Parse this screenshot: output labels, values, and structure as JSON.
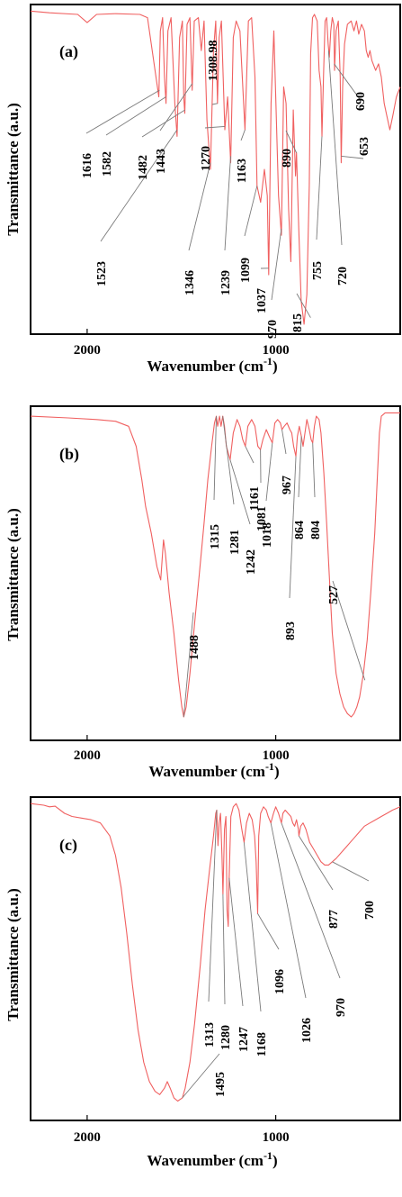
{
  "chart_data": [
    {
      "type": "line",
      "panel_label": "(a)",
      "xlabel_main": "Wavenumber (cm",
      "xlabel_sup": "-1",
      "xlabel_close": ")",
      "ylabel": "Transmittance (a.u.)",
      "xlim": [
        2300,
        340
      ],
      "x_ticks": [
        "2000",
        "1000"
      ],
      "x_tick_values": [
        2000,
        1000
      ],
      "line_color": "#f06060",
      "peaks": [
        "1616",
        "1582",
        "1523",
        "1482",
        "1443",
        "1346",
        "1308.98",
        "1270",
        "1239",
        "1163",
        "1099",
        "1037",
        "970",
        "890",
        "815",
        "755",
        "720",
        "690",
        "653"
      ]
    },
    {
      "type": "line",
      "panel_label": "(b)",
      "xlabel_main": "Wavenumber (cm",
      "xlabel_sup": "-1",
      "xlabel_close": ")",
      "ylabel": "Transmittance (a.u.)",
      "xlim": [
        2300,
        340
      ],
      "x_ticks": [
        "2000",
        "1000"
      ],
      "x_tick_values": [
        2000,
        1000
      ],
      "line_color": "#f06060",
      "peaks": [
        "1488",
        "1315",
        "1281",
        "1242",
        "1161",
        "1081",
        "1018",
        "967",
        "893",
        "864",
        "804",
        "527"
      ]
    },
    {
      "type": "line",
      "panel_label": "(c)",
      "xlabel_main": "Wavenumber (cm",
      "xlabel_sup": "-1",
      "xlabel_close": ")",
      "ylabel": "Transmittance (a.u.)",
      "xlim": [
        2300,
        340
      ],
      "x_ticks": [
        "2000",
        "1000"
      ],
      "x_tick_values": [
        2000,
        1000
      ],
      "line_color": "#f06060",
      "peaks": [
        "1495",
        "1313",
        "1280",
        "1247",
        "1168",
        "1096",
        "1026",
        "970",
        "877",
        "700"
      ]
    }
  ]
}
